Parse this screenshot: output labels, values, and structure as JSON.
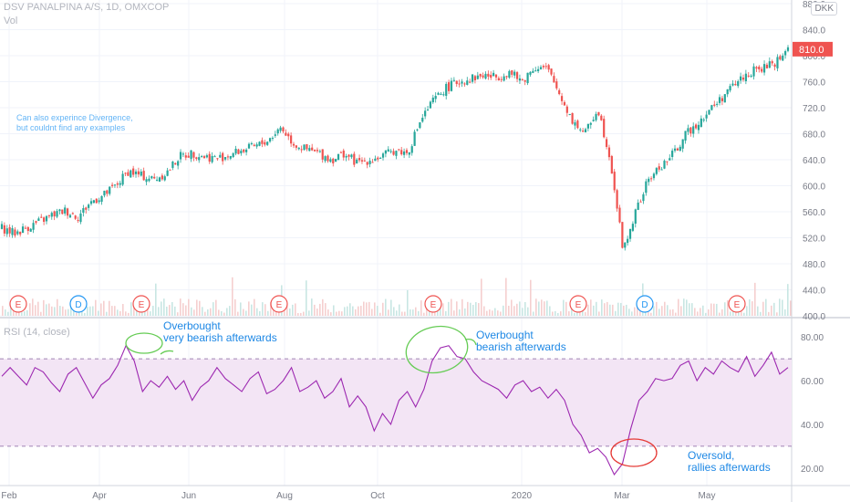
{
  "header": {
    "title": "DSV PANALPINA A/S, 1D, OMXCOP",
    "vol_label": "Vol",
    "currency": "DKK",
    "rsi_label": "RSI (14, close)"
  },
  "note": [
    "Can also experince Divergence,",
    "but couldnt find any examples"
  ],
  "annotations": [
    {
      "lines": [
        "Overbought",
        "very bearish afterwards"
      ]
    },
    {
      "lines": [
        "Overbought",
        "bearish afterwards"
      ]
    },
    {
      "lines": [
        "Oversold,",
        "rallies afterwards"
      ]
    }
  ],
  "colors": {
    "up": "#26a69a",
    "down": "#ef5350",
    "rsi": "#9c27b0",
    "rsi_band": "#f3e5f5",
    "event_e": "#ef5350",
    "event_d": "#2196f3"
  },
  "chart_data": [
    {
      "type": "line",
      "style": "candlestick",
      "title": "DSV PANALPINA A/S, 1D, OMXCOP",
      "x_ticks": [
        "Feb",
        "Apr",
        "Jun",
        "Aug",
        "Oct",
        "2020",
        "Mar",
        "May"
      ],
      "y_ticks": [
        400,
        440,
        480,
        520,
        560,
        600,
        640,
        680,
        720,
        760,
        800,
        840,
        880
      ],
      "ylim": [
        400,
        880
      ],
      "last_price": 810.0,
      "last_price_label": "810.0",
      "approx_closes": [
        535,
        527,
        536,
        545,
        555,
        562,
        552,
        575,
        585,
        600,
        623,
        615,
        610,
        620,
        645,
        650,
        645,
        642,
        648,
        655,
        660,
        670,
        690,
        665,
        655,
        650,
        640,
        650,
        635,
        640,
        645,
        655,
        650,
        700,
        730,
        750,
        760,
        765,
        770,
        767,
        775,
        760,
        783,
        780,
        740,
        700,
        680,
        720,
        640,
        500,
        560,
        610,
        630,
        650,
        680,
        700,
        720,
        740,
        760,
        775,
        780,
        790,
        810
      ],
      "events": [
        {
          "label": "E"
        },
        {
          "label": "D"
        },
        {
          "label": "E"
        },
        {
          "label": "E"
        },
        {
          "label": "E"
        },
        {
          "label": "E"
        },
        {
          "label": "D"
        },
        {
          "label": "E"
        }
      ]
    },
    {
      "type": "line",
      "title": "RSI (14, close)",
      "series": [
        {
          "name": "RSI (14, close)",
          "values": [
            62,
            66,
            62,
            58,
            66,
            64,
            59,
            55,
            63,
            66,
            59,
            52,
            58,
            61,
            67,
            76,
            69,
            55,
            60,
            57,
            62,
            56,
            60,
            51,
            57,
            60,
            66,
            61,
            58,
            55,
            61,
            64,
            54,
            56,
            60,
            66,
            55,
            57,
            60,
            52,
            55,
            61,
            48,
            53,
            48,
            37,
            45,
            40,
            51,
            55,
            48,
            56,
            69,
            75,
            76,
            71,
            70,
            64,
            60,
            58,
            56,
            52,
            58,
            60,
            55,
            57,
            52,
            56,
            51,
            40,
            35,
            27,
            29,
            25,
            17,
            22,
            38,
            51,
            55,
            61,
            60,
            61,
            67,
            69,
            60,
            66,
            63,
            69,
            66,
            64,
            71,
            62,
            67,
            73,
            63,
            66
          ]
        }
      ],
      "y_ticks": [
        20,
        40,
        60,
        80
      ],
      "ylim": [
        12,
        88
      ],
      "bands": [
        30,
        70
      ]
    }
  ]
}
